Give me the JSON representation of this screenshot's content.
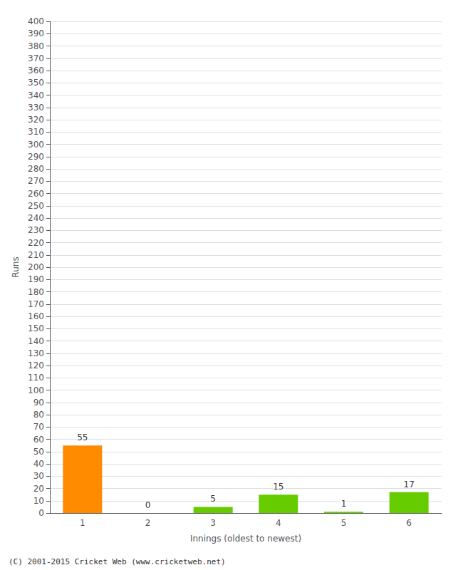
{
  "chart_data": {
    "type": "bar",
    "categories": [
      "1",
      "2",
      "3",
      "4",
      "5",
      "6"
    ],
    "values": [
      55,
      0,
      5,
      15,
      1,
      17
    ],
    "colors": [
      "#ff8c00",
      "#66cc00",
      "#66cc00",
      "#66cc00",
      "#66cc00",
      "#66cc00"
    ],
    "xlabel": "Innings (oldest to newest)",
    "ylabel": "Runs",
    "ylim": [
      0,
      400
    ],
    "yticks": [
      0,
      10,
      20,
      30,
      40,
      50,
      60,
      70,
      80,
      90,
      100,
      110,
      120,
      130,
      140,
      150,
      160,
      170,
      180,
      190,
      200,
      210,
      220,
      230,
      240,
      250,
      260,
      270,
      280,
      290,
      300,
      310,
      320,
      330,
      340,
      350,
      360,
      370,
      380,
      390,
      400
    ],
    "grid": true,
    "data_labels": true,
    "annotations": [
      "(C) 2001-2015 Cricket Web (www.cricketweb.net)"
    ]
  }
}
